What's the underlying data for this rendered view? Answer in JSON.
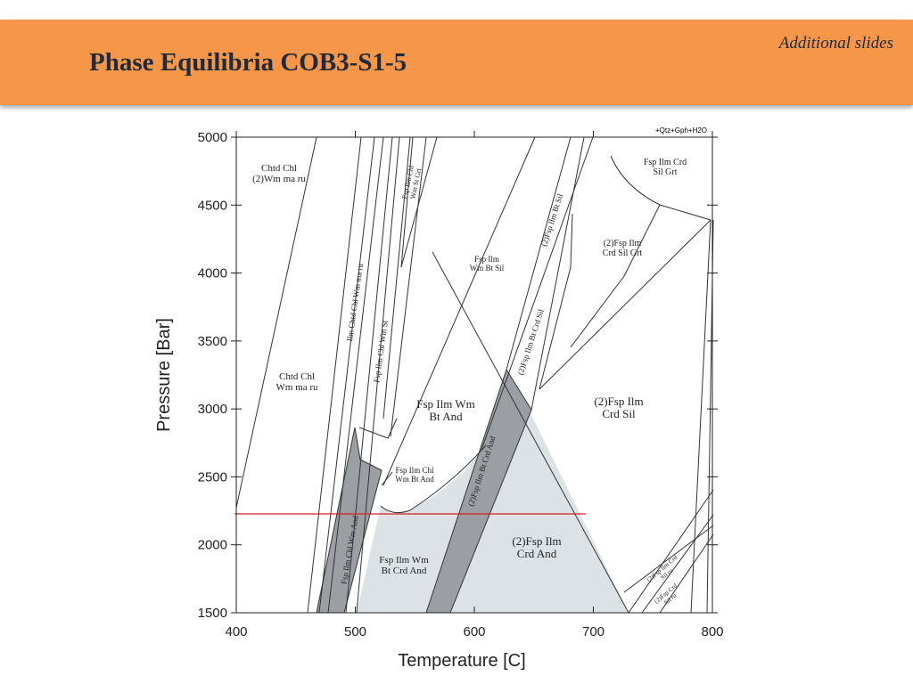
{
  "header": {
    "title": "Phase Equilibria COB3-S1-5",
    "tag": "Additional slides"
  },
  "figure": {
    "x_label": "Temperature [C]",
    "y_label": "Pressure [Bar]",
    "system": "+Qtz+Gph+H2O",
    "xlim": [
      400,
      800
    ],
    "ylim": [
      1500,
      5000
    ],
    "xticks": [
      400,
      500,
      600,
      700,
      800
    ],
    "yticks": [
      1500,
      2000,
      2500,
      3000,
      3500,
      4000,
      4500,
      5000
    ],
    "fields": [
      {
        "lines": [
          "Chtd Chl",
          "(2)Wm ma ru"
        ]
      },
      {
        "lines": [
          "Chtd Chl",
          "Wm ma ru"
        ]
      },
      {
        "lines": [
          "Ilm Chtd Chl Wm ma ru"
        ]
      },
      {
        "lines": [
          "Fsp Ilm Chl Wm St"
        ]
      },
      {
        "lines": [
          "Fsp Ilm Chl",
          "Wm St Grt"
        ]
      },
      {
        "lines": [
          "Fsp Ilm",
          "Wm Bt Sil"
        ]
      },
      {
        "lines": [
          "(2)Fsp Ilm Bt Sil"
        ]
      },
      {
        "lines": [
          "Fsp Ilm Crd",
          "Sil Grt"
        ]
      },
      {
        "lines": [
          "(2)Fsp Ilm",
          "Crd Sil Grt"
        ]
      },
      {
        "lines": [
          "(2)Fsp Ilm Bt Crd Sil"
        ]
      },
      {
        "lines": [
          "Fsp Ilm Wm",
          "Bt And"
        ]
      },
      {
        "lines": [
          "(2)Fsp Ilm",
          "Crd Sil"
        ]
      },
      {
        "lines": [
          "Fsp Ilm Chl",
          "Wm Bt And"
        ]
      },
      {
        "lines": [
          "(2)Fsp Ilm Bt Crd And"
        ]
      },
      {
        "lines": [
          "(2)Fsp Ilm",
          "Crd And"
        ]
      },
      {
        "lines": [
          "Fsp Ilm Wm",
          "Bt Crd And"
        ]
      },
      {
        "lines": [
          "Fsp Ilm Chl Wm And"
        ]
      },
      {
        "lines": [
          "(2)Fsp Ilm Crd",
          "Sil ru"
        ]
      },
      {
        "lines": [
          "(2)Fsp Crd",
          "Sil ru"
        ]
      }
    ]
  }
}
